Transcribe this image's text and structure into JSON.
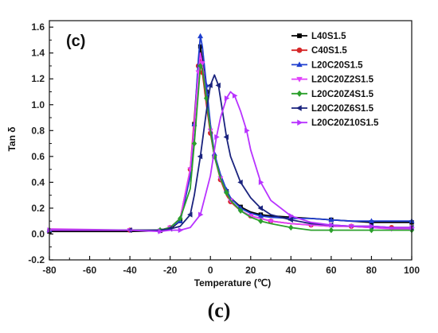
{
  "caption": "(c)",
  "chart_data": {
    "type": "line",
    "panel_label": "(c)",
    "xlabel": "Temperature (℃)",
    "ylabel": "Tan δ",
    "xlim": [
      -80,
      100
    ],
    "ylim": [
      -0.2,
      1.65
    ],
    "xticks": [
      -80,
      -60,
      -40,
      -20,
      0,
      20,
      40,
      60,
      80,
      100
    ],
    "yticks": [
      -0.2,
      0.0,
      0.2,
      0.4,
      0.6,
      0.8,
      1.0,
      1.2,
      1.4,
      1.6
    ],
    "xtick_labels": [
      "-80",
      "-60",
      "-40",
      "-20",
      "0",
      "20",
      "40",
      "60",
      "80",
      "100"
    ],
    "ytick_labels": [
      "-0.2",
      "0.0",
      "0.2",
      "0.4",
      "0.6",
      "0.8",
      "1.0",
      "1.2",
      "1.4",
      "1.6"
    ],
    "legend_position": "top-right",
    "grid": false,
    "series": [
      {
        "name": "L40S1.5",
        "color": "#000000",
        "marker": "square",
        "x": [
          -80,
          -40,
          -25,
          -20,
          -15,
          -10,
          -8,
          -6,
          -5,
          -4,
          -2,
          0,
          2,
          5,
          8,
          10,
          15,
          20,
          25,
          30,
          40,
          50,
          60,
          70,
          80,
          90,
          100
        ],
        "y": [
          0.02,
          0.02,
          0.025,
          0.04,
          0.1,
          0.45,
          0.85,
          1.3,
          1.45,
          1.35,
          1.1,
          0.8,
          0.6,
          0.45,
          0.33,
          0.28,
          0.21,
          0.17,
          0.15,
          0.14,
          0.13,
          0.12,
          0.11,
          0.1,
          0.09,
          0.09,
          0.09
        ]
      },
      {
        "name": "C40S1.5",
        "color": "#d62728",
        "marker": "circle",
        "x": [
          -80,
          -40,
          -25,
          -20,
          -15,
          -10,
          -8,
          -6,
          -5,
          -4,
          -2,
          0,
          2,
          5,
          8,
          10,
          15,
          20,
          25,
          30,
          40,
          50,
          60,
          70,
          80,
          90,
          100
        ],
        "y": [
          0.03,
          0.03,
          0.03,
          0.05,
          0.12,
          0.5,
          0.9,
          1.3,
          1.35,
          1.25,
          1.0,
          0.78,
          0.6,
          0.42,
          0.3,
          0.25,
          0.18,
          0.14,
          0.12,
          0.1,
          0.08,
          0.07,
          0.06,
          0.06,
          0.05,
          0.05,
          0.05
        ]
      },
      {
        "name": "L20C20S1.5",
        "color": "#1f3fcf",
        "marker": "triangle-up",
        "x": [
          -80,
          -40,
          -25,
          -20,
          -15,
          -10,
          -8,
          -6,
          -5,
          -4,
          -2,
          0,
          2,
          5,
          8,
          10,
          15,
          20,
          25,
          30,
          40,
          50,
          60,
          70,
          80,
          90,
          100
        ],
        "y": [
          0.03,
          0.03,
          0.03,
          0.05,
          0.1,
          0.45,
          0.85,
          1.35,
          1.53,
          1.45,
          1.15,
          0.85,
          0.62,
          0.46,
          0.34,
          0.28,
          0.2,
          0.16,
          0.14,
          0.13,
          0.12,
          0.12,
          0.11,
          0.1,
          0.1,
          0.1,
          0.1
        ]
      },
      {
        "name": "L20C20Z2S1.5",
        "color": "#e040fb",
        "marker": "triangle-down",
        "x": [
          -80,
          -40,
          -25,
          -20,
          -15,
          -10,
          -8,
          -6,
          -5,
          -4,
          -2,
          0,
          2,
          5,
          8,
          10,
          15,
          20,
          25,
          30,
          40,
          50,
          60,
          70,
          80,
          90,
          100
        ],
        "y": [
          0.04,
          0.03,
          0.03,
          0.05,
          0.12,
          0.5,
          0.85,
          1.25,
          1.4,
          1.32,
          1.05,
          0.8,
          0.6,
          0.43,
          0.32,
          0.26,
          0.18,
          0.14,
          0.12,
          0.1,
          0.08,
          0.07,
          0.06,
          0.06,
          0.05,
          0.04,
          0.04
        ]
      },
      {
        "name": "L20C20Z4S1.5",
        "color": "#2ca02c",
        "marker": "diamond",
        "x": [
          -80,
          -40,
          -25,
          -20,
          -15,
          -10,
          -8,
          -6,
          -5,
          -4,
          -2,
          0,
          2,
          5,
          8,
          10,
          15,
          20,
          25,
          30,
          40,
          50,
          60,
          70,
          80,
          90,
          100
        ],
        "y": [
          0.03,
          0.03,
          0.03,
          0.05,
          0.12,
          0.35,
          0.7,
          1.1,
          1.3,
          1.28,
          1.05,
          0.8,
          0.6,
          0.43,
          0.32,
          0.26,
          0.18,
          0.13,
          0.1,
          0.08,
          0.05,
          0.03,
          0.03,
          0.03,
          0.03,
          0.03,
          0.03
        ]
      },
      {
        "name": "L20C20Z6S1.5",
        "color": "#1a237e",
        "marker": "triangle-left",
        "x": [
          -80,
          -40,
          -25,
          -20,
          -15,
          -10,
          -8,
          -5,
          -2,
          0,
          2,
          4,
          6,
          8,
          10,
          15,
          20,
          25,
          30,
          40,
          50,
          60,
          70,
          80,
          90,
          100
        ],
        "y": [
          0.03,
          0.03,
          0.03,
          0.04,
          0.06,
          0.15,
          0.3,
          0.6,
          0.95,
          1.15,
          1.23,
          1.15,
          0.95,
          0.75,
          0.6,
          0.4,
          0.28,
          0.2,
          0.15,
          0.11,
          0.08,
          0.07,
          0.06,
          0.06,
          0.05,
          0.05
        ]
      },
      {
        "name": "L20C20Z10S1.5",
        "color": "#b833ff",
        "marker": "triangle-right",
        "x": [
          -80,
          -40,
          -25,
          -20,
          -15,
          -10,
          -5,
          0,
          3,
          5,
          8,
          10,
          12,
          15,
          18,
          20,
          25,
          30,
          40,
          50,
          60,
          70,
          80,
          90,
          100
        ],
        "y": [
          0.03,
          0.03,
          0.02,
          0.03,
          0.03,
          0.05,
          0.15,
          0.45,
          0.75,
          0.9,
          1.05,
          1.1,
          1.07,
          0.95,
          0.8,
          0.65,
          0.4,
          0.26,
          0.14,
          0.09,
          0.07,
          0.06,
          0.06,
          0.05,
          0.05
        ]
      }
    ]
  }
}
